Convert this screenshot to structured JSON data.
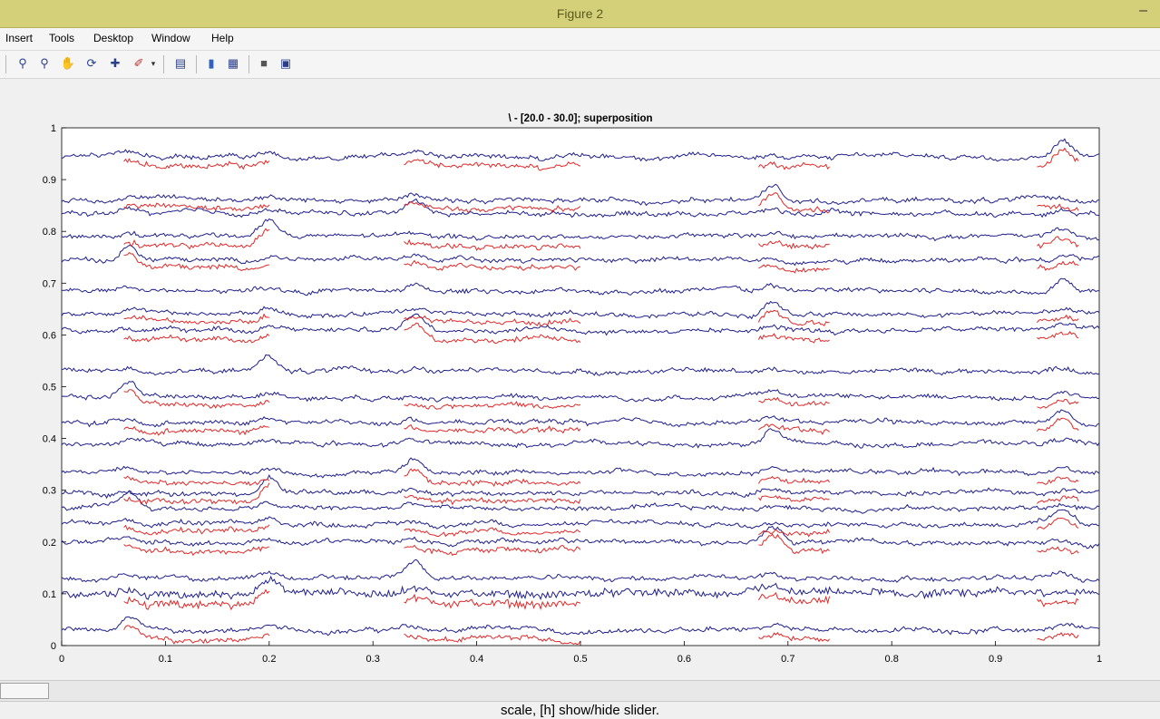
{
  "window": {
    "title": "Figure 2"
  },
  "menu": [
    "Insert",
    "Tools",
    "Desktop",
    "Window",
    "Help"
  ],
  "toolbar": {
    "icons": [
      "zoom-in-icon",
      "zoom-out-icon",
      "pan-hand-icon",
      "rotate-3d-icon",
      "data-cursor-icon",
      "brush-icon",
      "brush-dropdown-icon",
      "link-plot-icon",
      "colorbar-icon",
      "legend-icon",
      "hide-plot-tools-icon",
      "show-plot-tools-icon"
    ]
  },
  "status_text": "scale, [h] show/hide slider.",
  "colors": {
    "blue_trace": "#1e1e8c",
    "red_trace": "#e02828",
    "axes_bg": "#ffffff",
    "figure_bg": "#f0f0f0"
  },
  "chart_data": {
    "type": "line",
    "title": "\\ - [20.0 - 30.0]; superposition",
    "xlabel": "",
    "ylabel": "",
    "xlim": [
      0,
      1
    ],
    "ylim": [
      0,
      1
    ],
    "xticks": [
      0,
      0.1,
      0.2,
      0.3,
      0.4,
      0.5,
      0.6,
      0.7,
      0.8,
      0.9,
      1
    ],
    "xtick_labels": [
      "0",
      "0.1",
      "0.2",
      "0.3",
      "0.4",
      "0.5",
      "0.6",
      "0.7",
      "0.8",
      "0.9",
      "1"
    ],
    "yticks": [
      0,
      0.1,
      0.2,
      0.3,
      0.4,
      0.5,
      0.6,
      0.7,
      0.8,
      0.9,
      1
    ],
    "ytick_labels": [
      "0",
      "0.1",
      "0.2",
      "0.3",
      "0.4",
      "0.5",
      "0.6",
      "0.7",
      "0.8",
      "0.9",
      "1"
    ],
    "grid": false,
    "channel_baselines": [
      0.03,
      0.1,
      0.13,
      0.2,
      0.235,
      0.265,
      0.295,
      0.335,
      0.39,
      0.43,
      0.48,
      0.53,
      0.61,
      0.64,
      0.685,
      0.745,
      0.79,
      0.835,
      0.86,
      0.945
    ],
    "series": [
      {
        "color": "#1e1e8c",
        "values_per_channel": "eeg-traces"
      },
      {
        "color": "#e02828",
        "values_per_channel": "eeg-traces-overlay"
      }
    ],
    "red_overlay_x_ranges": [
      [
        0.06,
        0.2
      ],
      [
        0.33,
        0.5
      ],
      [
        0.67,
        0.74
      ],
      [
        0.94,
        0.98
      ]
    ]
  }
}
